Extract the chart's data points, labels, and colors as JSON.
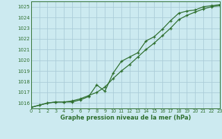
{
  "title": "Graphe pression niveau de la mer (hPa)",
  "bg_color": "#cceaf0",
  "grid_color": "#aaccd8",
  "line_color": "#2d6e2d",
  "xlim": [
    0,
    23
  ],
  "ylim": [
    1015.5,
    1025.5
  ],
  "yticks": [
    1016,
    1017,
    1018,
    1019,
    1020,
    1021,
    1022,
    1023,
    1024,
    1025
  ],
  "xticks": [
    0,
    1,
    2,
    3,
    4,
    5,
    6,
    7,
    8,
    9,
    10,
    11,
    12,
    13,
    14,
    15,
    16,
    17,
    18,
    19,
    20,
    21,
    22,
    23
  ],
  "series1_x": [
    0,
    1,
    2,
    3,
    4,
    5,
    6,
    7,
    8,
    9,
    10,
    11,
    12,
    13,
    14,
    15,
    16,
    17,
    18,
    19,
    20,
    21,
    22,
    23
  ],
  "series1_y": [
    1015.6,
    1015.8,
    1016.0,
    1016.1,
    1016.1,
    1016.2,
    1016.4,
    1016.7,
    1017.0,
    1017.5,
    1018.3,
    1019.0,
    1019.6,
    1020.3,
    1021.0,
    1021.6,
    1022.3,
    1023.0,
    1023.8,
    1024.2,
    1024.5,
    1024.8,
    1025.0,
    1025.1
  ],
  "series2_x": [
    0,
    1,
    2,
    3,
    4,
    5,
    6,
    7,
    8,
    9,
    10,
    11,
    12,
    13,
    14,
    15,
    16,
    17,
    18,
    19,
    20,
    21,
    22,
    23
  ],
  "series2_y": [
    1015.6,
    1015.8,
    1016.0,
    1016.1,
    1016.1,
    1016.1,
    1016.3,
    1016.6,
    1017.7,
    1017.1,
    1018.8,
    1019.9,
    1020.3,
    1020.7,
    1021.8,
    1022.2,
    1022.9,
    1023.7,
    1024.4,
    1024.6,
    1024.7,
    1025.0,
    1025.1,
    1025.2
  ]
}
